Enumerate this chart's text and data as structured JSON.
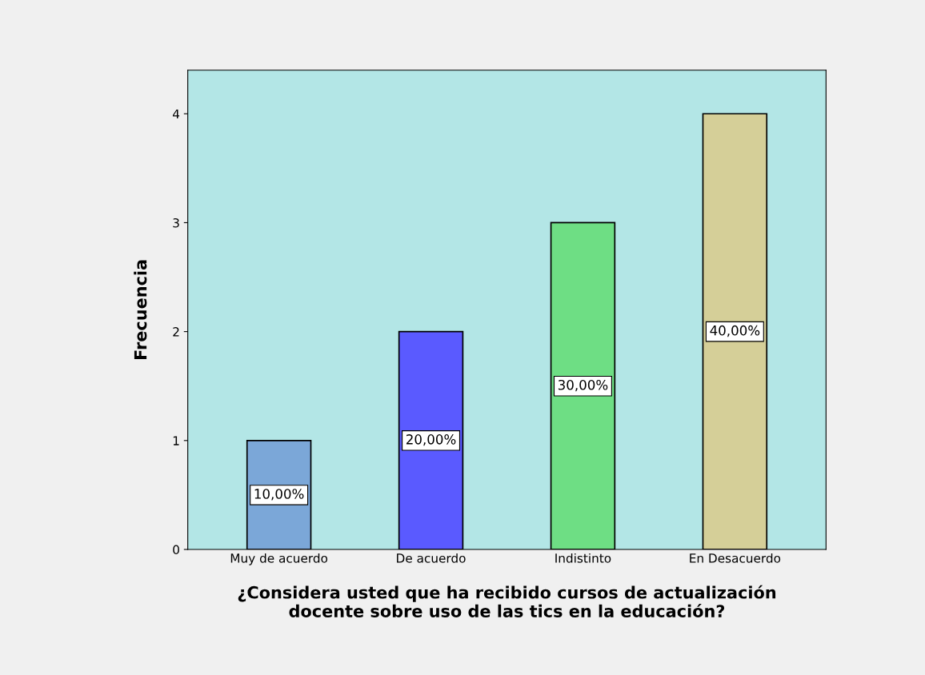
{
  "chart_data": {
    "type": "bar",
    "xlabel": "¿Considera usted que ha recibido cursos de actualización\ndocente sobre uso de las tics en la educación?",
    "ylabel": "Frecuencia",
    "categories": [
      "Muy de acuerdo",
      "De acuerdo",
      "Indistinto",
      "En Desacuerdo"
    ],
    "values": [
      1,
      2,
      3,
      4
    ],
    "colors": [
      "#7ba7d8",
      "#5a5aff",
      "#6ede84",
      "#d5cf98"
    ],
    "annotations": [
      "10,00%",
      "20,00%",
      "30,00%",
      "40,00%"
    ],
    "ylim": [
      0,
      4.4
    ],
    "yticks": [
      0,
      1,
      2,
      3,
      4
    ],
    "grid": false,
    "legend": false
  }
}
